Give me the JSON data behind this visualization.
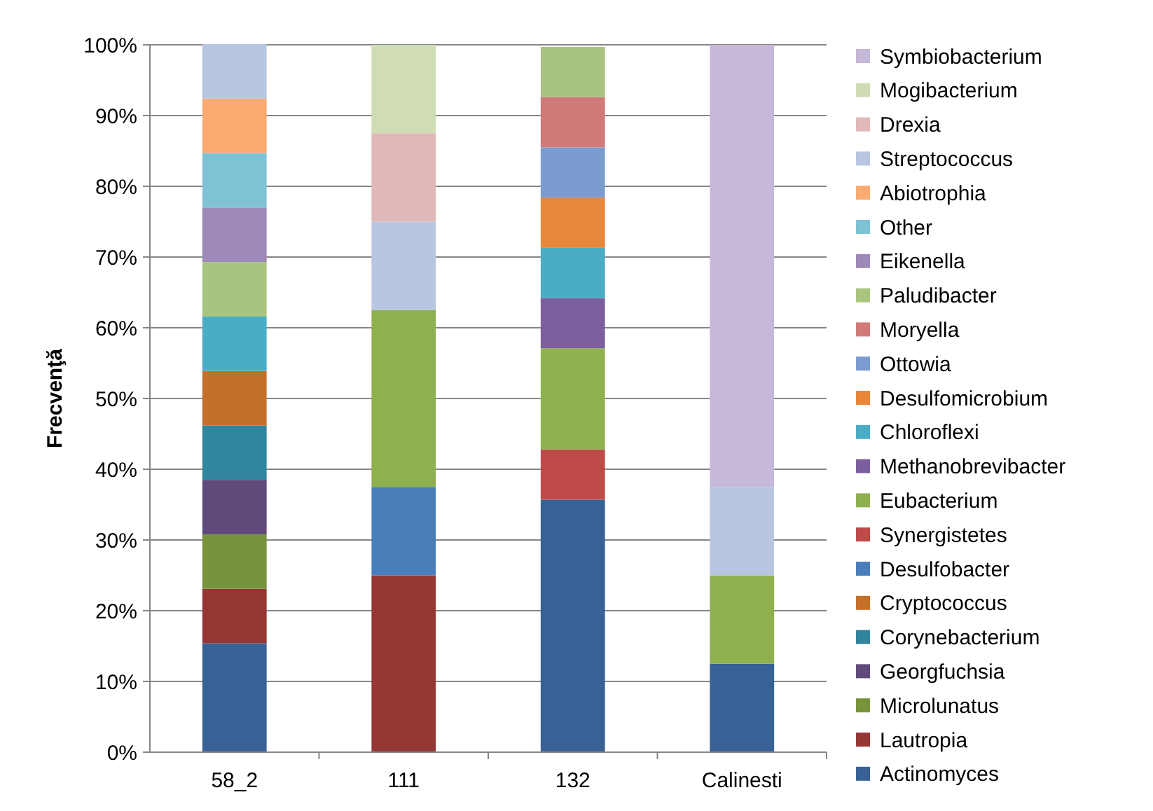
{
  "chart_data": {
    "type": "bar",
    "stacked": true,
    "ylabel": "Frecvenţă",
    "categories": [
      "58_2",
      "111",
      "132",
      "Calinesti"
    ],
    "ylim": [
      0,
      100
    ],
    "yticks": [
      {
        "value": 0,
        "label": "0%"
      },
      {
        "value": 10,
        "label": "10%"
      },
      {
        "value": 20,
        "label": "20%"
      },
      {
        "value": 30,
        "label": "30%"
      },
      {
        "value": 40,
        "label": "40%"
      },
      {
        "value": 50,
        "label": "50%"
      },
      {
        "value": 60,
        "label": "60%"
      },
      {
        "value": 70,
        "label": "70%"
      },
      {
        "value": 80,
        "label": "80%"
      },
      {
        "value": 90,
        "label": "90%"
      },
      {
        "value": 100,
        "label": "100%"
      }
    ],
    "grid": "y",
    "legend": "right",
    "series": [
      {
        "name": "Actinomyces",
        "color": "#386195",
        "values": [
          15.4,
          null,
          35.7,
          12.5
        ]
      },
      {
        "name": "Lautropia",
        "color": "#953735",
        "values": [
          7.7,
          25,
          null,
          null
        ]
      },
      {
        "name": "Microlunatus",
        "color": "#77933c",
        "values": [
          7.7,
          null,
          null,
          null
        ]
      },
      {
        "name": "Georgfuchsia",
        "color": "#604a7b",
        "values": [
          7.7,
          null,
          null,
          null
        ]
      },
      {
        "name": "Corynebacterium",
        "color": "#31859c",
        "values": [
          7.7,
          null,
          null,
          null
        ]
      },
      {
        "name": "Cryptococcus",
        "color": "#c5702a",
        "values": [
          7.7,
          null,
          null,
          null
        ]
      },
      {
        "name": "Desulfobacter",
        "color": "#4a7ebb",
        "values": [
          null,
          12.5,
          null,
          null
        ]
      },
      {
        "name": "Synergistetes",
        "color": "#be4b48",
        "values": [
          null,
          null,
          7.1,
          null
        ]
      },
      {
        "name": "Eubacterium",
        "color": "#8fb04f",
        "values": [
          null,
          25,
          14.3,
          12.5
        ]
      },
      {
        "name": "Methanobrevibacter",
        "color": "#7d5fa0",
        "values": [
          null,
          null,
          7.1,
          null
        ]
      },
      {
        "name": "Chloroflexi",
        "color": "#4bacc6",
        "values": [
          7.7,
          null,
          7.1,
          null
        ]
      },
      {
        "name": "Desulfomicrobium",
        "color": "#e8863a",
        "values": [
          null,
          null,
          7.1,
          null
        ]
      },
      {
        "name": "Ottowia",
        "color": "#7c9cd0",
        "values": [
          null,
          null,
          7.1,
          null
        ]
      },
      {
        "name": "Moryella",
        "color": "#d07a7a",
        "values": [
          null,
          null,
          7.1,
          null
        ]
      },
      {
        "name": "Paludibacter",
        "color": "#a9c47f",
        "values": [
          7.7,
          null,
          7.1,
          null
        ]
      },
      {
        "name": "Eikenella",
        "color": "#9e89b8",
        "values": [
          7.7,
          null,
          null,
          null
        ]
      },
      {
        "name": "Other",
        "color": "#7fc2d6",
        "values": [
          7.7,
          null,
          null,
          null
        ]
      },
      {
        "name": "Abiotrophia",
        "color": "#f9ab72",
        "values": [
          7.7,
          null,
          null,
          null
        ]
      },
      {
        "name": "Streptococcus",
        "color": "#b8c6e2",
        "values": [
          7.7,
          12.5,
          null,
          12.5
        ]
      },
      {
        "name": "Drexia",
        "color": "#e0b8b8",
        "values": [
          null,
          12.5,
          null,
          null
        ]
      },
      {
        "name": "Mogibacterium",
        "color": "#cfdcb4",
        "values": [
          null,
          12.5,
          null,
          null
        ]
      },
      {
        "name": "Symbiobacterium",
        "color": "#c6b8d8",
        "values": [
          null,
          null,
          null,
          62.5
        ]
      }
    ]
  }
}
